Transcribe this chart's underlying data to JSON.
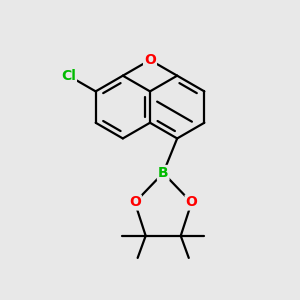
{
  "bg_color": "#e8e8e8",
  "bond_color": "#000000",
  "line_width": 1.6,
  "atom_colors": {
    "O": "#ff0000",
    "B": "#00bb00",
    "Cl": "#00bb00"
  },
  "font_size_atom": 10,
  "sep": 0.016
}
